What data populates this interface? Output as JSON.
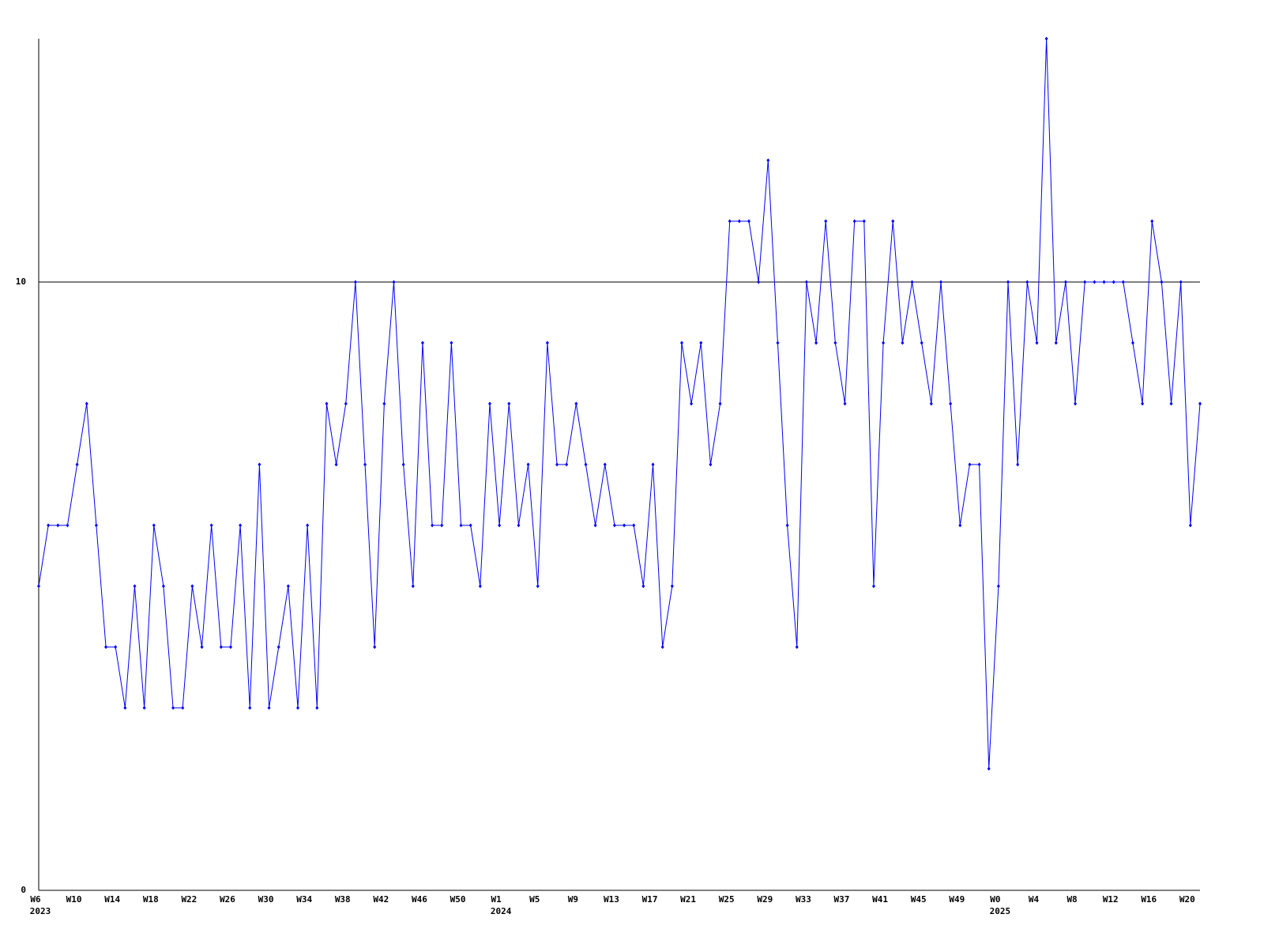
{
  "chart_data": {
    "type": "line",
    "categories": [
      "W6",
      null,
      null,
      null,
      "W10",
      null,
      null,
      null,
      "W14",
      null,
      null,
      null,
      "W18",
      null,
      null,
      null,
      "W22",
      null,
      null,
      null,
      "W26",
      null,
      null,
      null,
      "W30",
      null,
      null,
      null,
      "W34",
      null,
      null,
      null,
      "W38",
      null,
      null,
      null,
      "W42",
      null,
      null,
      null,
      "W46",
      null,
      null,
      null,
      "W50",
      null,
      null,
      null,
      "W1",
      null,
      null,
      null,
      "W5",
      null,
      null,
      null,
      "W9",
      null,
      null,
      null,
      "W13",
      null,
      null,
      null,
      "W17",
      null,
      null,
      null,
      "W21",
      null,
      null,
      null,
      "W25",
      null,
      null,
      null,
      "W29",
      null,
      null,
      null,
      "W33",
      null,
      null,
      null,
      "W37",
      null,
      null,
      null,
      "W41",
      null,
      null,
      null,
      "W45",
      null,
      null,
      null,
      "W49",
      null,
      null,
      null,
      "W0",
      null,
      null,
      null,
      "W4",
      null,
      null,
      null,
      "W8",
      null,
      null,
      null,
      "W12",
      null,
      null,
      null,
      "W16",
      null,
      null,
      null,
      "W20",
      null
    ],
    "category_years": [
      "2023",
      null,
      null,
      null,
      null,
      null,
      null,
      null,
      null,
      null,
      null,
      null,
      null,
      null,
      null,
      null,
      null,
      null,
      null,
      null,
      null,
      null,
      null,
      null,
      null,
      null,
      null,
      null,
      null,
      null,
      null,
      null,
      null,
      null,
      null,
      null,
      null,
      null,
      null,
      null,
      null,
      null,
      null,
      null,
      null,
      null,
      null,
      null,
      "2024",
      null,
      null,
      null,
      null,
      null,
      null,
      null,
      null,
      null,
      null,
      null,
      null,
      null,
      null,
      null,
      null,
      null,
      null,
      null,
      null,
      null,
      null,
      null,
      null,
      null,
      null,
      null,
      null,
      null,
      null,
      null,
      null,
      null,
      null,
      null,
      null,
      null,
      null,
      null,
      null,
      null,
      null,
      null,
      null,
      null,
      null,
      null,
      null,
      null,
      null,
      null,
      "2025",
      null,
      null,
      null,
      null,
      null,
      null,
      null,
      null,
      null,
      null,
      null,
      null,
      null,
      null,
      null,
      null,
      null,
      null,
      null,
      null,
      null
    ],
    "series": [
      {
        "color": "#0000ff",
        "values": [
          5,
          6,
          6,
          6,
          7,
          8,
          6,
          4,
          4,
          3,
          5,
          3,
          6,
          5,
          3,
          3,
          5,
          4,
          6,
          4,
          4,
          6,
          3,
          7,
          3,
          4,
          5,
          3,
          6,
          3,
          8,
          7,
          8,
          10,
          7,
          4,
          8,
          10,
          7,
          5,
          9,
          6,
          6,
          9,
          6,
          6,
          5,
          8,
          6,
          8,
          6,
          7,
          5,
          9,
          7,
          7,
          8,
          7,
          6,
          7,
          6,
          6,
          6,
          5,
          7,
          4,
          5,
          9,
          8,
          9,
          7,
          8,
          11,
          11,
          11,
          10,
          12,
          9,
          6,
          4,
          10,
          9,
          11,
          9,
          8,
          11,
          11,
          5,
          9,
          11,
          9,
          10,
          9,
          8,
          10,
          8,
          6,
          7,
          7,
          2,
          5,
          10,
          7,
          10,
          9,
          14,
          9,
          10,
          8,
          10,
          10,
          10,
          10,
          10,
          9,
          8,
          11,
          10,
          8,
          10,
          6,
          8
        ]
      }
    ],
    "ylim": [
      0,
      14
    ],
    "yticks": [
      0,
      10
    ],
    "grid": true
  }
}
